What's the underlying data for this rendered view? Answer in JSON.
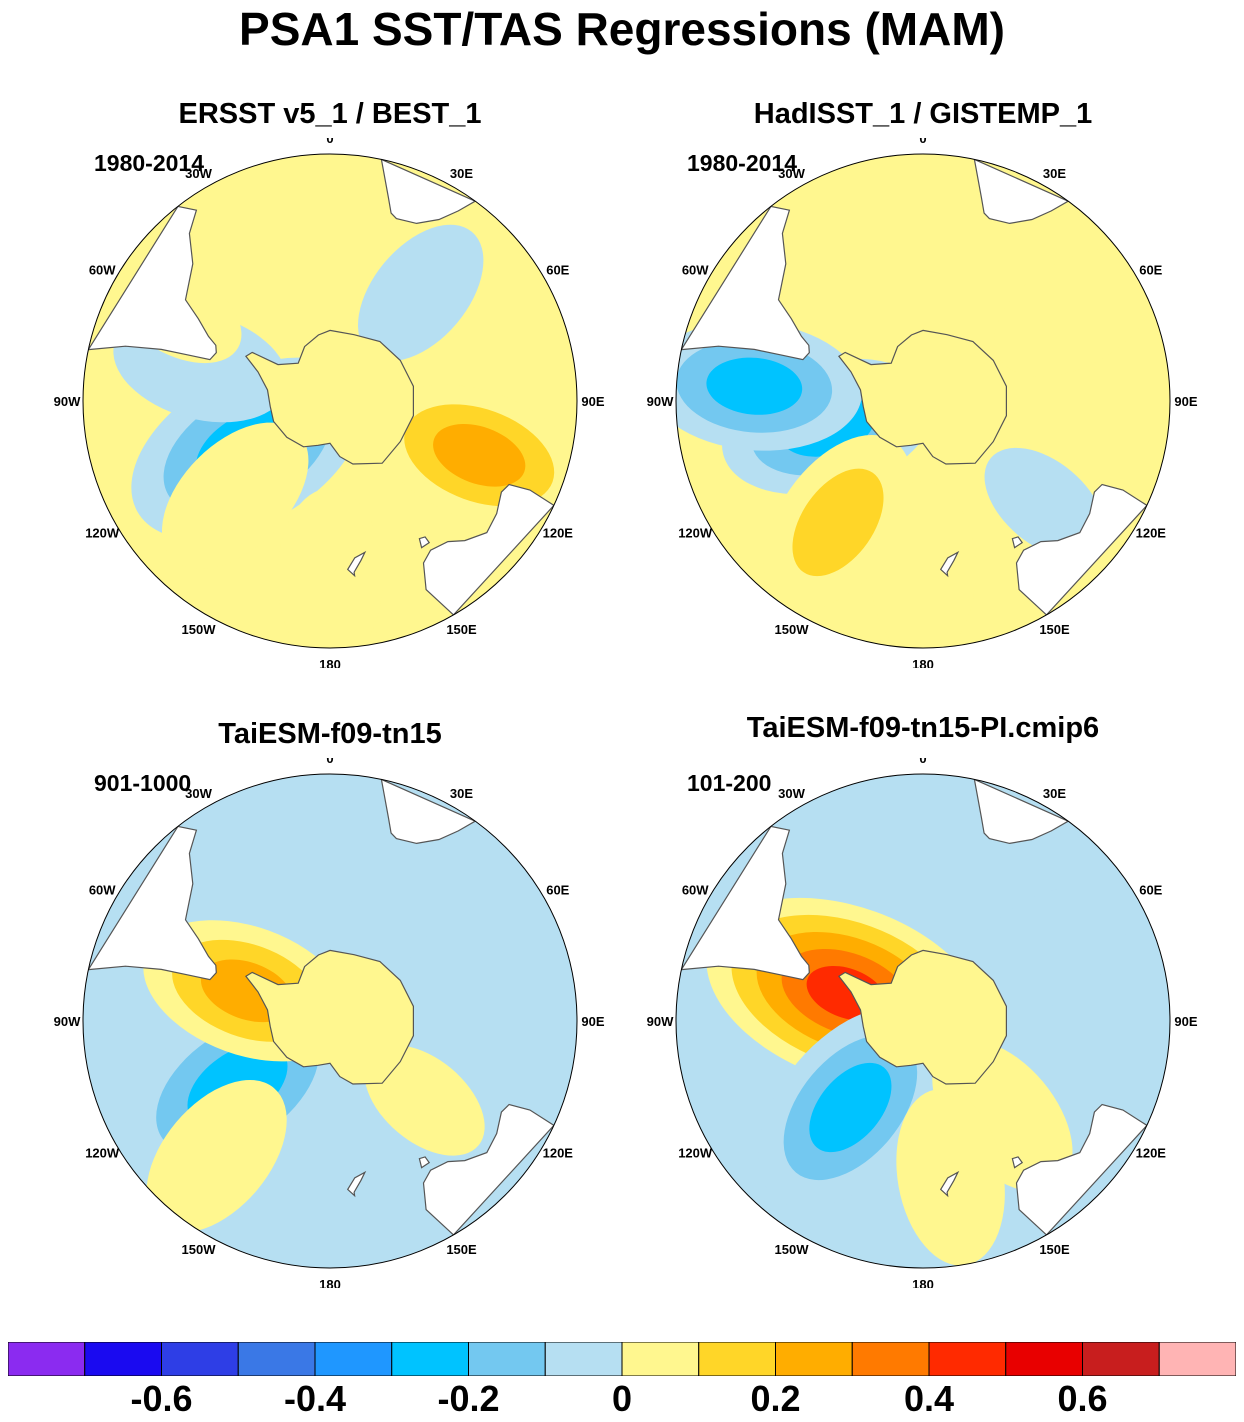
{
  "title": "PSA1 SST/TAS Regressions (MAM)",
  "colors": {
    "levels": [
      "#8b2bf0",
      "#1a0af0",
      "#2e3ee6",
      "#3a78e6",
      "#1f97ff",
      "#00c3ff",
      "#73c8f0",
      "#b6dff2",
      "#fff78f",
      "#ffd628",
      "#ffad00",
      "#ff7a00",
      "#ff2a00",
      "#e80000",
      "#c81e1e",
      "#ffb4b4"
    ],
    "land": "#ffffff",
    "coast": "#555555"
  },
  "chart_data": [
    {
      "type": "heatmap",
      "title": "ERSST v5_1 / BEST_1",
      "period": "1980-2014",
      "projection": "south polar stereographic",
      "longitude_labels": [
        "0",
        "30E",
        "60E",
        "90E",
        "120E",
        "150E",
        "180",
        "150W",
        "120W",
        "90W",
        "60W",
        "30W"
      ],
      "features": [
        {
          "lon": 240,
          "lat": -63,
          "value": -0.35
        },
        {
          "lon": 225,
          "lat": -52,
          "value": 0.15
        },
        {
          "lon": 285,
          "lat": -52,
          "value": -0.15
        },
        {
          "lon": 300,
          "lat": -40,
          "value": 0.05
        },
        {
          "lon": 40,
          "lat": -50,
          "value": -0.1
        },
        {
          "lon": 110,
          "lat": -45,
          "value": 0.25
        },
        {
          "lon": 180,
          "lat": -40,
          "value": 0.15
        }
      ]
    },
    {
      "type": "heatmap",
      "title": "HadISST_1 / GISTEMP_1",
      "period": "1980-2014",
      "projection": "south polar stereographic",
      "longitude_labels": [
        "0",
        "30E",
        "60E",
        "90E",
        "120E",
        "150E",
        "180",
        "150W",
        "120W",
        "90W",
        "60W",
        "30W"
      ],
      "features": [
        {
          "lon": 255,
          "lat": -62,
          "value": -0.25
        },
        {
          "lon": 215,
          "lat": -48,
          "value": 0.2
        },
        {
          "lon": 275,
          "lat": -42,
          "value": -0.25
        },
        {
          "lon": 60,
          "lat": -40,
          "value": 0.15
        },
        {
          "lon": 130,
          "lat": -45,
          "value": -0.05
        },
        {
          "lon": 180,
          "lat": -42,
          "value": 0.15
        }
      ]
    },
    {
      "type": "heatmap",
      "title": "TaiESM-f09-tn15",
      "period": "901-1000",
      "projection": "south polar stereographic",
      "longitude_labels": [
        "0",
        "30E",
        "60E",
        "90E",
        "120E",
        "150E",
        "180",
        "150W",
        "120W",
        "90W",
        "60W",
        "30W"
      ],
      "features": [
        {
          "lon": 235,
          "lat": -58,
          "value": -0.35
        },
        {
          "lon": 290,
          "lat": -65,
          "value": 0.25
        },
        {
          "lon": 220,
          "lat": -40,
          "value": 0.15
        },
        {
          "lon": 30,
          "lat": -55,
          "value": -0.05
        },
        {
          "lon": 130,
          "lat": -55,
          "value": 0.05
        }
      ]
    },
    {
      "type": "heatmap",
      "title": "TaiESM-f09-tn15-PI.cmip6",
      "period": "101-200",
      "projection": "south polar stereographic",
      "longitude_labels": [
        "0",
        "30E",
        "60E",
        "90E",
        "120E",
        "150E",
        "180",
        "150W",
        "120W",
        "90W",
        "60W",
        "30W"
      ],
      "features": [
        {
          "lon": 290,
          "lat": -67,
          "value": 0.45
        },
        {
          "lon": 220,
          "lat": -58,
          "value": -0.3
        },
        {
          "lon": 60,
          "lat": -50,
          "value": -0.15
        },
        {
          "lon": 140,
          "lat": -55,
          "value": 0.15
        },
        {
          "lon": 170,
          "lat": -45,
          "value": 0.15
        }
      ]
    }
  ],
  "colorbar": {
    "levels": [
      -0.75,
      -0.7,
      -0.6,
      -0.5,
      -0.4,
      -0.3,
      -0.2,
      -0.1,
      0,
      0.1,
      0.2,
      0.3,
      0.4,
      0.5,
      0.6,
      0.7,
      0.75
    ],
    "labels": [
      "-0.6",
      "-0.4",
      "-0.2",
      "0",
      "0.2",
      "0.4",
      "0.6"
    ]
  }
}
